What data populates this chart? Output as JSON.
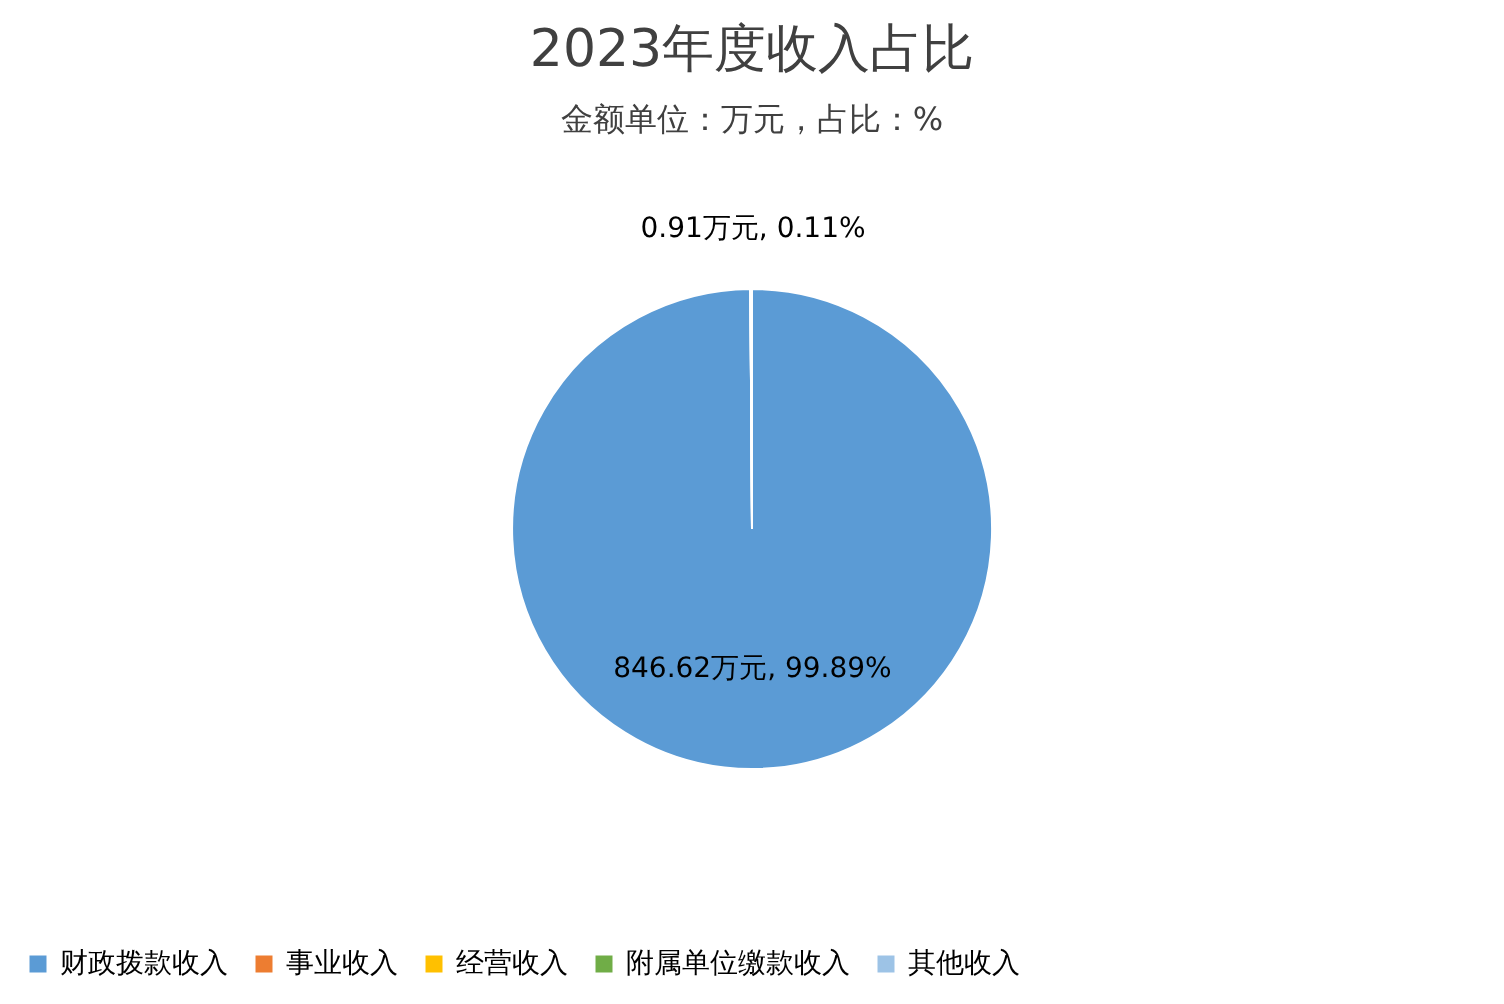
{
  "chart_data": {
    "type": "pie",
    "title": "2023年度收入占比",
    "subtitle": "金额单位：万元，占比：%",
    "categories": [
      "财政拨款收入",
      "事业收入",
      "经营收入",
      "附属单位缴款收入",
      "其他收入"
    ],
    "values": [
      846.62,
      0,
      0,
      0,
      0.91
    ],
    "colors": [
      "#5b9bd5",
      "#ed7d31",
      "#ffc000",
      "#70ad47",
      "#9dc3e6"
    ],
    "value_labels": [
      "846.62万元, 99.89%",
      null,
      null,
      null,
      "0.91万元, 0.11%"
    ],
    "legend": "bottom"
  }
}
